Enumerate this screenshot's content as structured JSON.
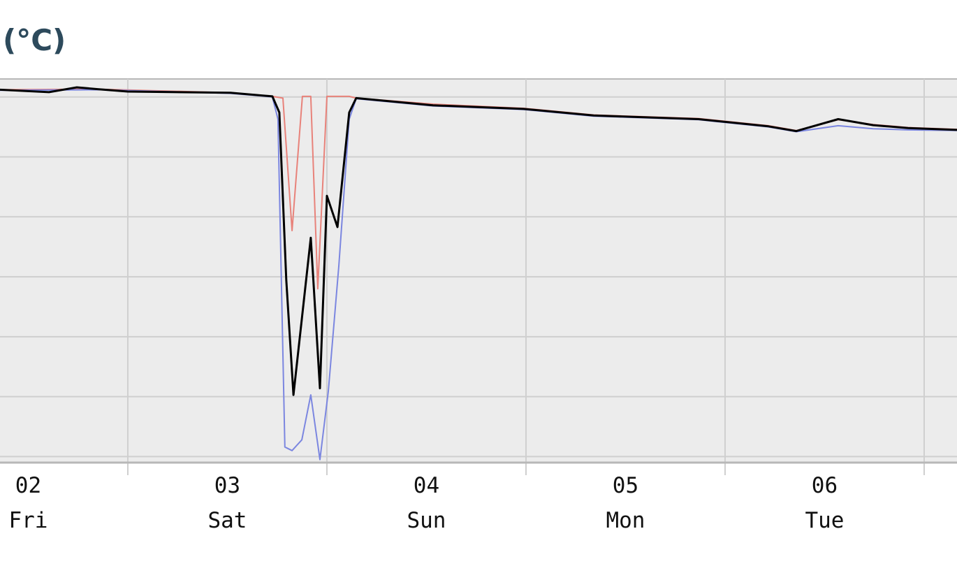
{
  "chart_data": {
    "type": "line",
    "title": "(°C)",
    "xlim": [
      2.358,
      7.165
    ],
    "ylim": [
      -6.1,
      0.3
    ],
    "xticks": [
      3,
      4,
      5,
      6,
      7
    ],
    "yticks": [
      0,
      -1,
      -2,
      -3,
      -4,
      -5,
      -6
    ],
    "grid": true,
    "day_labels": [
      {
        "value": 2.5,
        "day": "02",
        "weekday": "Fri"
      },
      {
        "value": 3.5,
        "day": "03",
        "weekday": "Sat"
      },
      {
        "value": 4.5,
        "day": "04",
        "weekday": "Sun"
      },
      {
        "value": 5.5,
        "day": "05",
        "weekday": "Mon"
      },
      {
        "value": 6.5,
        "day": "06",
        "weekday": "Tue"
      }
    ],
    "series": [
      {
        "color": "#e8827a",
        "x": [
          2.358,
          2.849,
          3.516,
          3.726,
          3.779,
          3.825,
          3.877,
          3.919,
          3.954,
          4.0,
          4.112,
          4.147,
          4.533,
          4.989,
          5.34,
          5.867,
          6.218,
          6.358,
          6.568,
          6.744,
          6.919,
          7.165
        ],
        "values": [
          0.12,
          0.13,
          0.07,
          0.01,
          -0.02,
          -2.23,
          0.01,
          0.01,
          -3.2,
          0.01,
          0.01,
          -0.02,
          -0.12,
          -0.19,
          -0.3,
          -0.36,
          -0.48,
          -0.56,
          -0.38,
          -0.46,
          -0.51,
          -0.54
        ]
      },
      {
        "color": "#7b86e0",
        "x": [
          2.358,
          2.849,
          3.516,
          3.726,
          3.754,
          3.789,
          3.825,
          3.874,
          3.919,
          3.965,
          4.007,
          4.06,
          4.112,
          4.147,
          4.533,
          4.989,
          5.34,
          5.867,
          6.218,
          6.358,
          6.568,
          6.744,
          6.919,
          7.165
        ],
        "values": [
          0.11,
          0.12,
          0.06,
          0.0,
          -0.37,
          -5.84,
          -5.9,
          -5.72,
          -4.97,
          -6.05,
          -4.91,
          -2.81,
          -0.37,
          -0.03,
          -0.15,
          -0.21,
          -0.32,
          -0.38,
          -0.5,
          -0.58,
          -0.48,
          -0.53,
          -0.55,
          -0.56
        ]
      },
      {
        "color": "#000000",
        "x": [
          2.358,
          2.604,
          2.744,
          2.849,
          3,
          3.516,
          3.726,
          3.761,
          3.796,
          3.832,
          3.919,
          3.965,
          4.0,
          4.053,
          4.112,
          4.147,
          4.533,
          4.989,
          5.34,
          5.867,
          6.218,
          6.358,
          6.568,
          6.744,
          6.919,
          7.165
        ],
        "values": [
          0.12,
          0.08,
          0.16,
          0.13,
          0.09,
          0.07,
          0.01,
          -0.26,
          -3.05,
          -4.97,
          -2.35,
          -4.86,
          -1.65,
          -2.17,
          -0.26,
          -0.02,
          -0.14,
          -0.2,
          -0.31,
          -0.37,
          -0.49,
          -0.57,
          -0.37,
          -0.47,
          -0.52,
          -0.55
        ]
      }
    ]
  }
}
